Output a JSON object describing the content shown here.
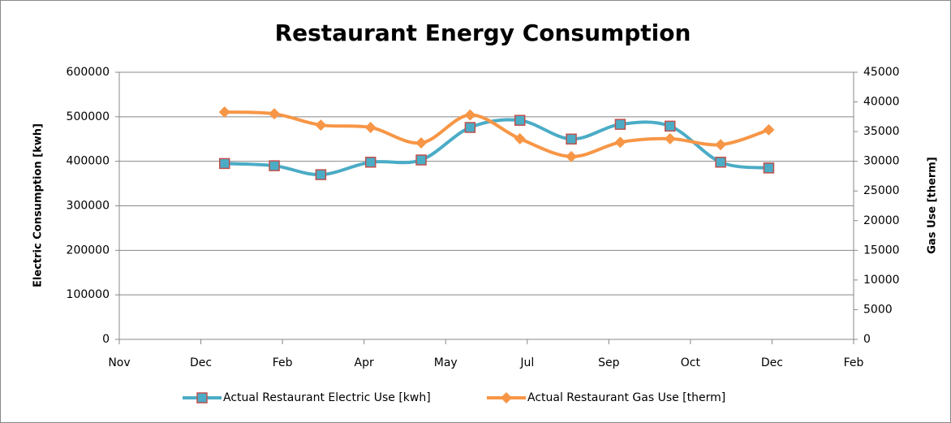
{
  "chart_data": {
    "type": "line",
    "title": "Restaurant Energy Consumption",
    "y_label": "Electric Consumption [kwh]",
    "y2_label": "Gas Use [therm]",
    "x": [
      1.29,
      1.9,
      2.47,
      3.08,
      3.7,
      4.3,
      4.91,
      5.54,
      6.14,
      6.75,
      7.37,
      7.96
    ],
    "xlim": [
      0,
      9
    ],
    "xticks": [
      {
        "value": 0,
        "label": "Nov"
      },
      {
        "value": 1,
        "label": "Dec"
      },
      {
        "value": 2,
        "label": "Feb"
      },
      {
        "value": 3,
        "label": "Apr"
      },
      {
        "value": 4,
        "label": "May"
      },
      {
        "value": 5,
        "label": "Jul"
      },
      {
        "value": 6,
        "label": "Sep"
      },
      {
        "value": 7,
        "label": "Oct"
      },
      {
        "value": 8,
        "label": "Dec"
      },
      {
        "value": 9,
        "label": "Feb"
      }
    ],
    "ylim": [
      0,
      600000
    ],
    "yticks": [
      0,
      100000,
      200000,
      300000,
      400000,
      500000,
      600000
    ],
    "y2lim": [
      0,
      45000
    ],
    "y2ticks": [
      0,
      5000,
      10000,
      15000,
      20000,
      25000,
      30000,
      35000,
      40000,
      45000
    ],
    "grid": true,
    "legend": "bottom",
    "smooth": true,
    "series": [
      {
        "name": "Actual Restaurant Electric Use [kwh]",
        "color": "#4bacc6",
        "marker": "square",
        "marker_edge": "#c0504d",
        "values": [
          395000,
          390000,
          370000,
          398000,
          403000,
          476000,
          492000,
          450000,
          483000,
          479000,
          398000,
          385000
        ]
      },
      {
        "name": "Actual Restaurant Gas Use [therm]",
        "color": "#f79646",
        "marker": "diamond",
        "axis": "y2",
        "values": [
          38300,
          38000,
          36100,
          35700,
          33100,
          37800,
          33800,
          30800,
          33200,
          33800,
          32800,
          35300
        ]
      }
    ]
  }
}
